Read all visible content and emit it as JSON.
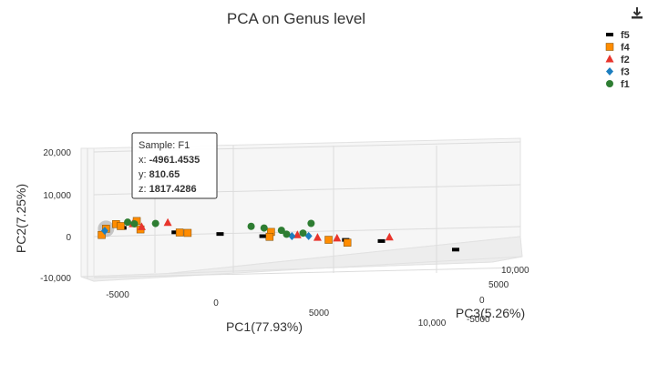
{
  "chart_data": {
    "type": "scatter",
    "title": "PCA on Genus level",
    "xlabel": "PC1(77.93%)",
    "ylabel": "PC2(7.25%)",
    "zlabel": "PC3(5.26%)",
    "x_ticks": [
      "-5000",
      "0",
      "5000",
      "10,000"
    ],
    "y_ticks": [
      "-10,000",
      "0",
      "10,000",
      "20,000"
    ],
    "z_ticks": [
      "-5000",
      "0",
      "5000",
      "10,000"
    ],
    "xlim": [
      -7000,
      12500
    ],
    "ylim": [
      -10000,
      20000
    ],
    "zlim": [
      -5000,
      10000
    ],
    "legend_position": "top-right",
    "grid": true,
    "series": [
      {
        "name": "f5",
        "symbol": "square-small",
        "color": "#000000",
        "points": [
          [
            -4200,
            1200,
            1500
          ],
          [
            -1800,
            600,
            800
          ],
          [
            300,
            500,
            600
          ],
          [
            2300,
            300,
            300
          ],
          [
            6200,
            -100,
            200
          ],
          [
            7900,
            -200,
            300
          ],
          [
            11400,
            -1800,
            200
          ]
        ]
      },
      {
        "name": "f4",
        "symbol": "square",
        "color": "#ff8c00",
        "points": [
          [
            -4961.4535,
            810.65,
            1817.4286
          ],
          [
            -5300,
            -400,
            600
          ],
          [
            -4500,
            2000,
            1700
          ],
          [
            -4300,
            1600,
            1500
          ],
          [
            -3500,
            2800,
            1900
          ],
          [
            -3400,
            1000,
            1200
          ],
          [
            -1600,
            600,
            700
          ],
          [
            -1200,
            500,
            900
          ],
          [
            2700,
            1300,
            500
          ],
          [
            2600,
            200,
            200
          ],
          [
            5400,
            -200,
            300
          ],
          [
            6300,
            -800,
            400
          ]
        ]
      },
      {
        "name": "f2",
        "symbol": "triangle",
        "color": "#e8352c",
        "points": [
          [
            -3700,
            2100,
            1800
          ],
          [
            -3300,
            1500,
            1600
          ],
          [
            -2000,
            2500,
            2200
          ],
          [
            4000,
            600,
            1000
          ],
          [
            4900,
            200,
            500
          ],
          [
            5800,
            200,
            300
          ],
          [
            8300,
            700,
            500
          ]
        ]
      },
      {
        "name": "f3",
        "symbol": "diamond",
        "color": "#1c7ebf",
        "points": [
          [
            -5100,
            500,
            1100
          ],
          [
            3700,
            400,
            600
          ],
          [
            4500,
            500,
            700
          ]
        ]
      },
      {
        "name": "f1",
        "symbol": "circle",
        "color": "#2e7d32",
        "points": [
          [
            -3900,
            2400,
            2200
          ],
          [
            -3600,
            2100,
            2000
          ],
          [
            -2600,
            2300,
            2000
          ],
          [
            1900,
            2200,
            1800
          ],
          [
            2500,
            1900,
            1700
          ],
          [
            3300,
            1500,
            1500
          ],
          [
            3500,
            700,
            1100
          ],
          [
            4300,
            1000,
            1300
          ],
          [
            4800,
            3100,
            2400
          ]
        ]
      }
    ],
    "tooltip": {
      "sample": "Sample: F1",
      "x_label": "x:",
      "x_value": "-4961.4535",
      "y_label": "y:",
      "y_value": "810.65",
      "z_label": "z:",
      "z_value": "1817.4286"
    }
  },
  "toolbar": {
    "download_icon": "download-icon"
  }
}
